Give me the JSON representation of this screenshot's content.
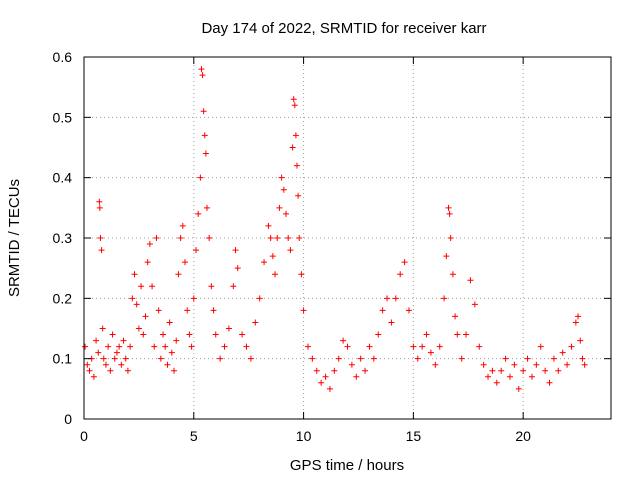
{
  "chart_data": {
    "type": "scatter",
    "title": "Day 174 of 2022, SRMTID for receiver karr",
    "xlabel": "GPS time / hours",
    "ylabel": "SRMTID / TECUs",
    "xlim": [
      0,
      24
    ],
    "ylim": [
      0,
      0.6
    ],
    "xticks": [
      0,
      5,
      10,
      15,
      20
    ],
    "xtick_labels": [
      "0",
      "5",
      "10",
      "15",
      "20"
    ],
    "yticks": [
      0,
      0.1,
      0.2,
      0.3,
      0.4,
      0.5,
      0.6
    ],
    "ytick_labels": [
      "0",
      "0.1",
      "0.2",
      "0.3",
      "0.4",
      "0.5",
      "0.6"
    ],
    "grid": true,
    "marker": "plus",
    "series": [
      {
        "name": "SRMTID",
        "color": "#ff0000",
        "points": [
          [
            0.05,
            0.12
          ],
          [
            0.15,
            0.09
          ],
          [
            0.25,
            0.08
          ],
          [
            0.35,
            0.1
          ],
          [
            0.45,
            0.07
          ],
          [
            0.55,
            0.13
          ],
          [
            0.65,
            0.11
          ],
          [
            0.7,
            0.36
          ],
          [
            0.72,
            0.35
          ],
          [
            0.75,
            0.3
          ],
          [
            0.8,
            0.28
          ],
          [
            0.85,
            0.15
          ],
          [
            0.9,
            0.1
          ],
          [
            1.0,
            0.09
          ],
          [
            1.1,
            0.12
          ],
          [
            1.2,
            0.08
          ],
          [
            1.3,
            0.14
          ],
          [
            1.4,
            0.1
          ],
          [
            1.5,
            0.11
          ],
          [
            1.6,
            0.12
          ],
          [
            1.7,
            0.09
          ],
          [
            1.8,
            0.13
          ],
          [
            1.9,
            0.1
          ],
          [
            2.0,
            0.08
          ],
          [
            2.1,
            0.12
          ],
          [
            2.2,
            0.2
          ],
          [
            2.3,
            0.24
          ],
          [
            2.4,
            0.19
          ],
          [
            2.5,
            0.15
          ],
          [
            2.6,
            0.22
          ],
          [
            2.7,
            0.14
          ],
          [
            2.8,
            0.17
          ],
          [
            2.9,
            0.26
          ],
          [
            3.0,
            0.29
          ],
          [
            3.1,
            0.22
          ],
          [
            3.2,
            0.12
          ],
          [
            3.3,
            0.3
          ],
          [
            3.4,
            0.18
          ],
          [
            3.5,
            0.1
          ],
          [
            3.6,
            0.14
          ],
          [
            3.7,
            0.12
          ],
          [
            3.8,
            0.09
          ],
          [
            3.9,
            0.16
          ],
          [
            4.0,
            0.11
          ],
          [
            4.1,
            0.08
          ],
          [
            4.2,
            0.13
          ],
          [
            4.3,
            0.24
          ],
          [
            4.4,
            0.3
          ],
          [
            4.5,
            0.32
          ],
          [
            4.6,
            0.26
          ],
          [
            4.7,
            0.18
          ],
          [
            4.8,
            0.14
          ],
          [
            4.9,
            0.12
          ],
          [
            5.0,
            0.2
          ],
          [
            5.1,
            0.28
          ],
          [
            5.2,
            0.34
          ],
          [
            5.3,
            0.4
          ],
          [
            5.35,
            0.58
          ],
          [
            5.4,
            0.57
          ],
          [
            5.45,
            0.51
          ],
          [
            5.5,
            0.47
          ],
          [
            5.55,
            0.44
          ],
          [
            5.6,
            0.35
          ],
          [
            5.7,
            0.3
          ],
          [
            5.8,
            0.22
          ],
          [
            5.9,
            0.18
          ],
          [
            6.0,
            0.14
          ],
          [
            6.2,
            0.1
          ],
          [
            6.4,
            0.12
          ],
          [
            6.6,
            0.15
          ],
          [
            6.8,
            0.22
          ],
          [
            6.9,
            0.28
          ],
          [
            7.0,
            0.25
          ],
          [
            7.2,
            0.14
          ],
          [
            7.4,
            0.12
          ],
          [
            7.6,
            0.1
          ],
          [
            7.8,
            0.16
          ],
          [
            8.0,
            0.2
          ],
          [
            8.2,
            0.26
          ],
          [
            8.4,
            0.32
          ],
          [
            8.5,
            0.3
          ],
          [
            8.6,
            0.27
          ],
          [
            8.7,
            0.24
          ],
          [
            8.8,
            0.3
          ],
          [
            8.9,
            0.35
          ],
          [
            9.0,
            0.4
          ],
          [
            9.1,
            0.38
          ],
          [
            9.2,
            0.34
          ],
          [
            9.3,
            0.3
          ],
          [
            9.4,
            0.28
          ],
          [
            9.5,
            0.45
          ],
          [
            9.55,
            0.53
          ],
          [
            9.6,
            0.52
          ],
          [
            9.65,
            0.47
          ],
          [
            9.7,
            0.42
          ],
          [
            9.75,
            0.37
          ],
          [
            9.8,
            0.3
          ],
          [
            9.9,
            0.24
          ],
          [
            10.0,
            0.18
          ],
          [
            10.2,
            0.12
          ],
          [
            10.4,
            0.1
          ],
          [
            10.6,
            0.08
          ],
          [
            10.8,
            0.06
          ],
          [
            11.0,
            0.07
          ],
          [
            11.2,
            0.05
          ],
          [
            11.4,
            0.08
          ],
          [
            11.6,
            0.1
          ],
          [
            11.8,
            0.13
          ],
          [
            12.0,
            0.12
          ],
          [
            12.2,
            0.09
          ],
          [
            12.4,
            0.07
          ],
          [
            12.6,
            0.1
          ],
          [
            12.8,
            0.08
          ],
          [
            13.0,
            0.12
          ],
          [
            13.2,
            0.1
          ],
          [
            13.4,
            0.14
          ],
          [
            13.6,
            0.18
          ],
          [
            13.8,
            0.2
          ],
          [
            14.0,
            0.16
          ],
          [
            14.2,
            0.2
          ],
          [
            14.4,
            0.24
          ],
          [
            14.6,
            0.26
          ],
          [
            14.8,
            0.18
          ],
          [
            15.0,
            0.12
          ],
          [
            15.2,
            0.1
          ],
          [
            15.4,
            0.12
          ],
          [
            15.6,
            0.14
          ],
          [
            15.8,
            0.11
          ],
          [
            16.0,
            0.09
          ],
          [
            16.2,
            0.12
          ],
          [
            16.4,
            0.2
          ],
          [
            16.5,
            0.27
          ],
          [
            16.6,
            0.35
          ],
          [
            16.65,
            0.34
          ],
          [
            16.7,
            0.3
          ],
          [
            16.8,
            0.24
          ],
          [
            16.9,
            0.17
          ],
          [
            17.0,
            0.14
          ],
          [
            17.2,
            0.1
          ],
          [
            17.4,
            0.14
          ],
          [
            17.6,
            0.23
          ],
          [
            17.8,
            0.19
          ],
          [
            18.0,
            0.12
          ],
          [
            18.2,
            0.09
          ],
          [
            18.4,
            0.07
          ],
          [
            18.6,
            0.08
          ],
          [
            18.8,
            0.06
          ],
          [
            19.0,
            0.08
          ],
          [
            19.2,
            0.1
          ],
          [
            19.4,
            0.07
          ],
          [
            19.6,
            0.09
          ],
          [
            19.8,
            0.05
          ],
          [
            20.0,
            0.08
          ],
          [
            20.2,
            0.1
          ],
          [
            20.4,
            0.07
          ],
          [
            20.6,
            0.09
          ],
          [
            20.8,
            0.12
          ],
          [
            21.0,
            0.08
          ],
          [
            21.2,
            0.06
          ],
          [
            21.4,
            0.1
          ],
          [
            21.6,
            0.08
          ],
          [
            21.8,
            0.11
          ],
          [
            22.0,
            0.09
          ],
          [
            22.2,
            0.12
          ],
          [
            22.4,
            0.16
          ],
          [
            22.5,
            0.17
          ],
          [
            22.6,
            0.13
          ],
          [
            22.7,
            0.1
          ],
          [
            22.8,
            0.09
          ]
        ]
      }
    ]
  }
}
